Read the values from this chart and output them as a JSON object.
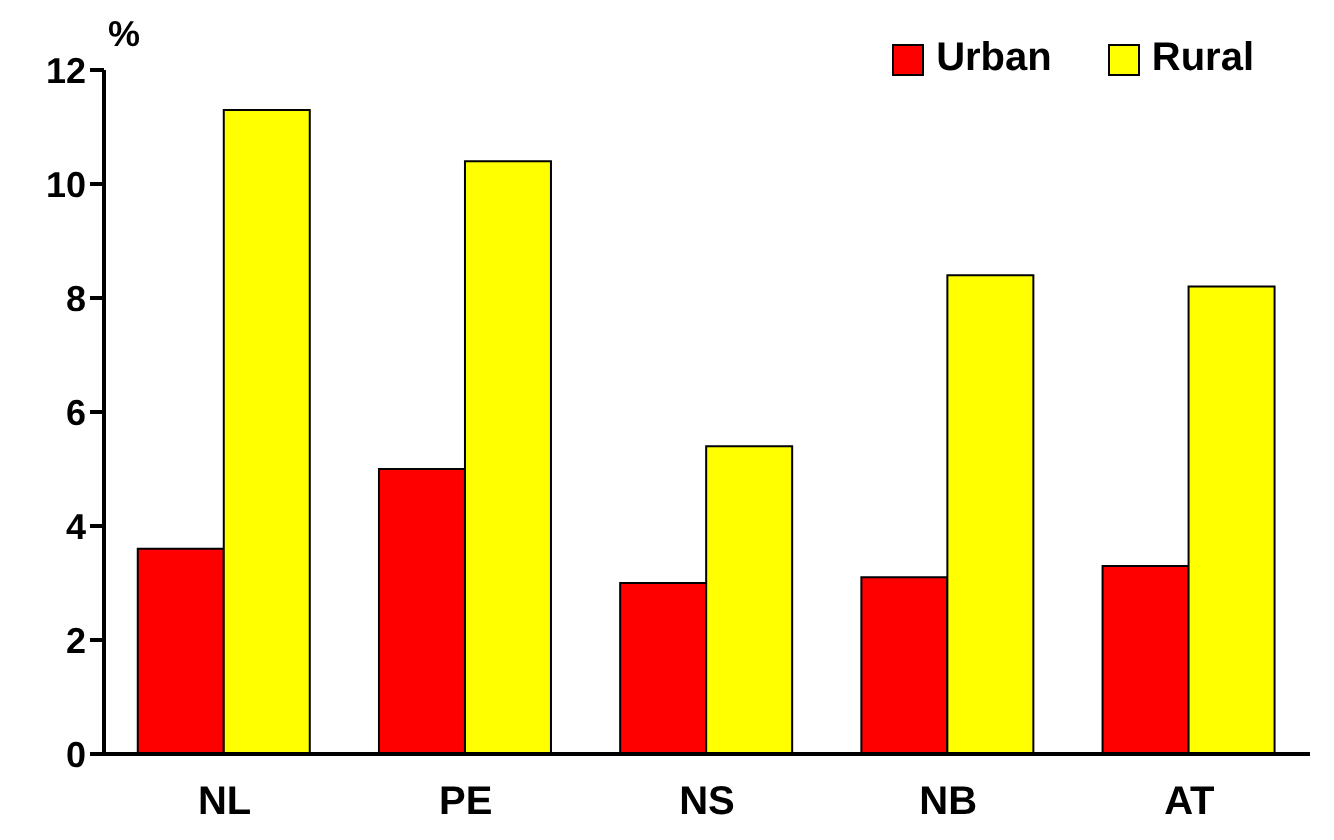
{
  "chart_data": {
    "type": "bar",
    "ylabel": "%",
    "categories": [
      "NL",
      "PE",
      "NS",
      "NB",
      "AT"
    ],
    "series": [
      {
        "name": "Urban",
        "color": "#ff0000",
        "values": [
          3.6,
          5.0,
          3.0,
          3.1,
          3.3
        ]
      },
      {
        "name": "Rural",
        "color": "#ffff00",
        "values": [
          11.3,
          10.4,
          5.4,
          8.4,
          8.2
        ]
      }
    ],
    "ylim": [
      0,
      12
    ],
    "yticks": [
      0,
      2,
      4,
      6,
      8,
      10,
      12
    ],
    "grid": false,
    "legend": "top right"
  }
}
